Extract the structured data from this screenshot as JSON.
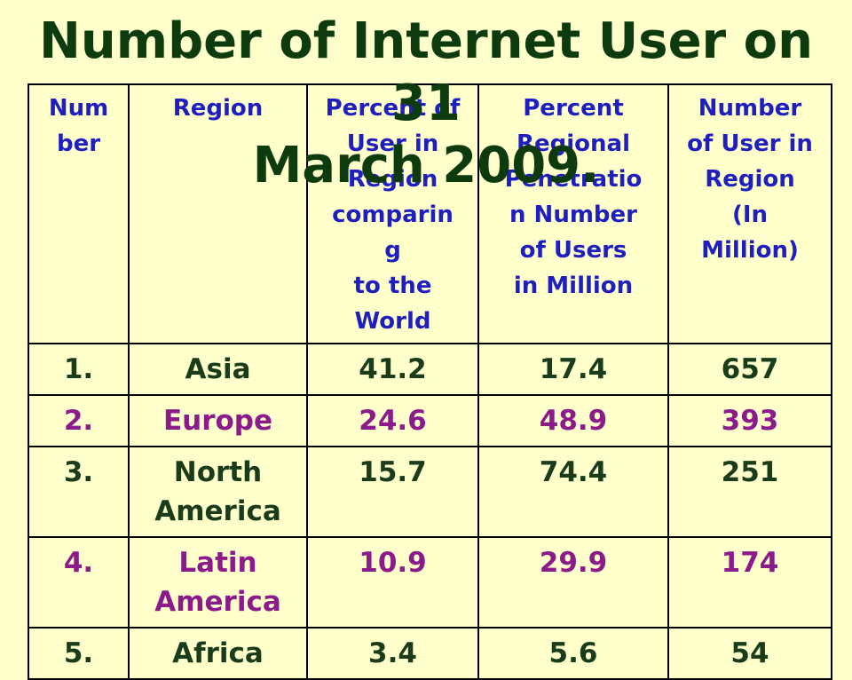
{
  "title": "Number of Internet User on 31\nMarch 2009.",
  "colors": {
    "background": "#FFFFCC",
    "header_text": "#1F1FC0",
    "title_text": "#0E3B0E",
    "row_green": "#1A3C1A",
    "row_purple": "#8B1A8B",
    "border": "#000000"
  },
  "table": {
    "headers": [
      "Num\nber",
      "Region",
      "Percent of\nUser in\nRegion\ncomparin\ng\n to the\nWorld",
      "Percent\nRegional\nPenetratio\nn  Number\nof Users\nin Million",
      "Number\nof User in\nRegion\n(In\nMillion)"
    ],
    "rows": [
      {
        "color": "green",
        "number": "1.",
        "region": "Asia",
        "percent_world": "41.2",
        "penetration": "17.4",
        "users_million": "657"
      },
      {
        "color": "purple",
        "number": "2.",
        "region": "Europe",
        "percent_world": "24.6",
        "penetration": "48.9",
        "users_million": "393"
      },
      {
        "color": "green",
        "number": "3.",
        "region": "North\nAmerica",
        "percent_world": "15.7",
        "penetration": "74.4",
        "users_million": "251"
      },
      {
        "color": "purple",
        "number": "4.",
        "region": "Latin\nAmerica",
        "percent_world": "10.9",
        "penetration": "29.9",
        "users_million": "174"
      },
      {
        "color": "green",
        "number": "5.",
        "region": "Africa",
        "percent_world": "3.4",
        "penetration": "5.6",
        "users_million": "54"
      }
    ]
  }
}
